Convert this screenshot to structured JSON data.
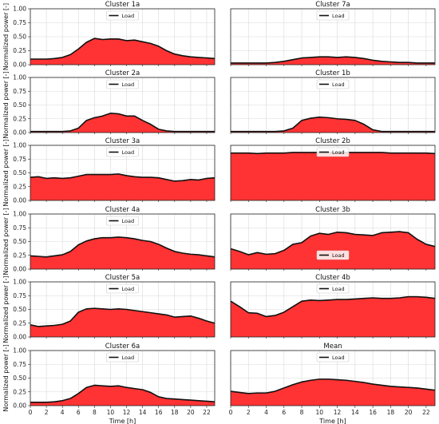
{
  "chart_data": [
    {
      "type": "area",
      "title": "Cluster 1a",
      "ylabel": "Normalized power [-]",
      "xlabel": "",
      "ylim": [
        0,
        1
      ],
      "xlim": [
        0,
        23
      ],
      "yticks": [
        "0.00",
        "0.25",
        "0.50",
        "0.75",
        "1.00"
      ],
      "xticks": [],
      "grid": true,
      "legend": "top-center",
      "series": [
        {
          "name": "Load",
          "x": [
            0,
            1,
            2,
            3,
            4,
            5,
            6,
            7,
            8,
            9,
            10,
            11,
            12,
            13,
            14,
            15,
            16,
            17,
            18,
            19,
            20,
            21,
            22,
            23
          ],
          "values": [
            0.1,
            0.1,
            0.1,
            0.11,
            0.13,
            0.18,
            0.28,
            0.4,
            0.47,
            0.45,
            0.46,
            0.46,
            0.43,
            0.44,
            0.41,
            0.38,
            0.33,
            0.25,
            0.19,
            0.16,
            0.14,
            0.13,
            0.12,
            0.11
          ]
        }
      ]
    },
    {
      "type": "area",
      "title": "Cluster 7a",
      "ylabel": "",
      "xlabel": "",
      "ylim": [
        0,
        1
      ],
      "xlim": [
        0,
        23
      ],
      "yticks": [],
      "xticks": [],
      "grid": true,
      "legend": "top-center",
      "series": [
        {
          "name": "Load",
          "x": [
            0,
            1,
            2,
            3,
            4,
            5,
            6,
            7,
            8,
            9,
            10,
            11,
            12,
            13,
            14,
            15,
            16,
            17,
            18,
            19,
            20,
            21,
            22,
            23
          ],
          "values": [
            0.03,
            0.03,
            0.03,
            0.03,
            0.03,
            0.04,
            0.06,
            0.09,
            0.12,
            0.13,
            0.14,
            0.14,
            0.13,
            0.14,
            0.13,
            0.11,
            0.08,
            0.06,
            0.05,
            0.04,
            0.04,
            0.03,
            0.03,
            0.03
          ]
        }
      ]
    },
    {
      "type": "area",
      "title": "Cluster 2a",
      "ylabel": "Normalized power [-]",
      "xlabel": "",
      "ylim": [
        0,
        1
      ],
      "xlim": [
        0,
        23
      ],
      "yticks": [
        "0.00",
        "0.25",
        "0.50",
        "0.75",
        "1.00"
      ],
      "xticks": [],
      "grid": true,
      "legend": "top-center",
      "series": [
        {
          "name": "Load",
          "x": [
            0,
            1,
            2,
            3,
            4,
            5,
            6,
            7,
            8,
            9,
            10,
            11,
            12,
            13,
            14,
            15,
            16,
            17,
            18,
            19,
            20,
            21,
            22,
            23
          ],
          "values": [
            0.02,
            0.02,
            0.02,
            0.02,
            0.02,
            0.03,
            0.08,
            0.22,
            0.27,
            0.3,
            0.35,
            0.34,
            0.3,
            0.3,
            0.22,
            0.15,
            0.06,
            0.03,
            0.02,
            0.02,
            0.02,
            0.02,
            0.02,
            0.02
          ]
        }
      ]
    },
    {
      "type": "area",
      "title": "Cluster 1b",
      "ylabel": "",
      "xlabel": "",
      "ylim": [
        0,
        1
      ],
      "xlim": [
        0,
        23
      ],
      "yticks": [],
      "xticks": [],
      "grid": true,
      "legend": "top-center",
      "series": [
        {
          "name": "Load",
          "x": [
            0,
            1,
            2,
            3,
            4,
            5,
            6,
            7,
            8,
            9,
            10,
            11,
            12,
            13,
            14,
            15,
            16,
            17,
            18,
            19,
            20,
            21,
            22,
            23
          ],
          "values": [
            0.02,
            0.02,
            0.02,
            0.02,
            0.02,
            0.02,
            0.03,
            0.08,
            0.22,
            0.26,
            0.28,
            0.27,
            0.25,
            0.24,
            0.22,
            0.15,
            0.05,
            0.02,
            0.02,
            0.02,
            0.02,
            0.02,
            0.02,
            0.02
          ]
        }
      ]
    },
    {
      "type": "area",
      "title": "Cluster 3a",
      "ylabel": "Normalized power [-]",
      "xlabel": "",
      "ylim": [
        0,
        1
      ],
      "xlim": [
        0,
        23
      ],
      "yticks": [
        "0.00",
        "0.25",
        "0.50",
        "0.75",
        "1.00"
      ],
      "xticks": [],
      "grid": true,
      "legend": "top-center",
      "series": [
        {
          "name": "Load",
          "x": [
            0,
            1,
            2,
            3,
            4,
            5,
            6,
            7,
            8,
            9,
            10,
            11,
            12,
            13,
            14,
            15,
            16,
            17,
            18,
            19,
            20,
            21,
            22,
            23
          ],
          "values": [
            0.42,
            0.43,
            0.4,
            0.41,
            0.4,
            0.41,
            0.44,
            0.47,
            0.47,
            0.47,
            0.47,
            0.48,
            0.45,
            0.43,
            0.42,
            0.42,
            0.41,
            0.38,
            0.35,
            0.36,
            0.38,
            0.37,
            0.4,
            0.41
          ]
        }
      ]
    },
    {
      "type": "area",
      "title": "Cluster 2b",
      "ylabel": "",
      "xlabel": "",
      "ylim": [
        0,
        1
      ],
      "xlim": [
        0,
        23
      ],
      "yticks": [],
      "xticks": [],
      "grid": true,
      "legend": "top-center",
      "series": [
        {
          "name": "Load",
          "x": [
            0,
            1,
            2,
            3,
            4,
            5,
            6,
            7,
            8,
            9,
            10,
            11,
            12,
            13,
            14,
            15,
            16,
            17,
            18,
            19,
            20,
            21,
            22,
            23
          ],
          "values": [
            0.86,
            0.86,
            0.86,
            0.85,
            0.86,
            0.86,
            0.86,
            0.87,
            0.87,
            0.87,
            0.87,
            0.87,
            0.87,
            0.87,
            0.87,
            0.87,
            0.87,
            0.87,
            0.86,
            0.86,
            0.86,
            0.86,
            0.86,
            0.85
          ]
        }
      ]
    },
    {
      "type": "area",
      "title": "Cluster 4a",
      "ylabel": "Normalized power [-]",
      "xlabel": "",
      "ylim": [
        0,
        1
      ],
      "xlim": [
        0,
        23
      ],
      "yticks": [
        "0.00",
        "0.25",
        "0.50",
        "0.75",
        "1.00"
      ],
      "xticks": [],
      "grid": true,
      "legend": "top-center",
      "series": [
        {
          "name": "Load",
          "x": [
            0,
            1,
            2,
            3,
            4,
            5,
            6,
            7,
            8,
            9,
            10,
            11,
            12,
            13,
            14,
            15,
            16,
            17,
            18,
            19,
            20,
            21,
            22,
            23
          ],
          "values": [
            0.24,
            0.23,
            0.22,
            0.24,
            0.26,
            0.32,
            0.44,
            0.51,
            0.55,
            0.57,
            0.57,
            0.58,
            0.57,
            0.55,
            0.52,
            0.5,
            0.45,
            0.38,
            0.32,
            0.29,
            0.27,
            0.26,
            0.24,
            0.22
          ]
        }
      ]
    },
    {
      "type": "area",
      "title": "Cluster 3b",
      "ylabel": "",
      "xlabel": "",
      "ylim": [
        0,
        1
      ],
      "xlim": [
        0,
        23
      ],
      "yticks": [],
      "xticks": [],
      "grid": true,
      "legend": "bottom-center",
      "series": [
        {
          "name": "Load",
          "x": [
            0,
            1,
            2,
            3,
            4,
            5,
            6,
            7,
            8,
            9,
            10,
            11,
            12,
            13,
            14,
            15,
            16,
            17,
            18,
            19,
            20,
            21,
            22,
            23
          ],
          "values": [
            0.37,
            0.32,
            0.26,
            0.3,
            0.27,
            0.28,
            0.34,
            0.45,
            0.48,
            0.6,
            0.65,
            0.63,
            0.67,
            0.66,
            0.63,
            0.62,
            0.61,
            0.66,
            0.67,
            0.68,
            0.66,
            0.54,
            0.45,
            0.41
          ]
        }
      ]
    },
    {
      "type": "area",
      "title": "Cluster 5a",
      "ylabel": "Normalized power [-]",
      "xlabel": "",
      "ylim": [
        0,
        1
      ],
      "xlim": [
        0,
        23
      ],
      "yticks": [
        "0.00",
        "0.25",
        "0.50",
        "0.75",
        "1.00"
      ],
      "xticks": [],
      "grid": true,
      "legend": "top-center",
      "series": [
        {
          "name": "Load",
          "x": [
            0,
            1,
            2,
            3,
            4,
            5,
            6,
            7,
            8,
            9,
            10,
            11,
            12,
            13,
            14,
            15,
            16,
            17,
            18,
            19,
            20,
            21,
            22,
            23
          ],
          "values": [
            0.22,
            0.19,
            0.2,
            0.21,
            0.23,
            0.29,
            0.45,
            0.51,
            0.52,
            0.51,
            0.5,
            0.51,
            0.5,
            0.48,
            0.46,
            0.44,
            0.42,
            0.4,
            0.36,
            0.37,
            0.38,
            0.34,
            0.29,
            0.25
          ]
        }
      ]
    },
    {
      "type": "area",
      "title": "Cluster 4b",
      "ylabel": "",
      "xlabel": "",
      "ylim": [
        0,
        1
      ],
      "xlim": [
        0,
        23
      ],
      "yticks": [],
      "xticks": [],
      "grid": true,
      "legend": "top-center",
      "series": [
        {
          "name": "Load",
          "x": [
            0,
            1,
            2,
            3,
            4,
            5,
            6,
            7,
            8,
            9,
            10,
            11,
            12,
            13,
            14,
            15,
            16,
            17,
            18,
            19,
            20,
            21,
            22,
            23
          ],
          "values": [
            0.65,
            0.55,
            0.44,
            0.43,
            0.37,
            0.39,
            0.45,
            0.55,
            0.65,
            0.67,
            0.66,
            0.67,
            0.68,
            0.68,
            0.69,
            0.7,
            0.71,
            0.7,
            0.7,
            0.71,
            0.73,
            0.73,
            0.72,
            0.7
          ]
        }
      ]
    },
    {
      "type": "area",
      "title": "Cluster 6a",
      "ylabel": "Normalized power [-]",
      "xlabel": "Time [h]",
      "ylim": [
        0,
        1
      ],
      "xlim": [
        0,
        23
      ],
      "yticks": [
        "0.00",
        "0.25",
        "0.50",
        "0.75",
        "1.00"
      ],
      "xticks": [
        "0",
        "2",
        "4",
        "6",
        "8",
        "10",
        "12",
        "14",
        "16",
        "18",
        "20",
        "22"
      ],
      "grid": true,
      "legend": "top-center",
      "series": [
        {
          "name": "Load",
          "x": [
            0,
            1,
            2,
            3,
            4,
            5,
            6,
            7,
            8,
            9,
            10,
            11,
            12,
            13,
            14,
            15,
            16,
            17,
            18,
            19,
            20,
            21,
            22,
            23
          ],
          "values": [
            0.06,
            0.06,
            0.06,
            0.07,
            0.09,
            0.13,
            0.22,
            0.33,
            0.37,
            0.36,
            0.35,
            0.36,
            0.33,
            0.31,
            0.29,
            0.24,
            0.16,
            0.13,
            0.12,
            0.11,
            0.1,
            0.09,
            0.08,
            0.07
          ]
        }
      ]
    },
    {
      "type": "area",
      "title": "Mean",
      "ylabel": "",
      "xlabel": "Time [h]",
      "ylim": [
        0,
        1
      ],
      "xlim": [
        0,
        23
      ],
      "yticks": [],
      "xticks": [
        "0",
        "2",
        "4",
        "6",
        "8",
        "10",
        "12",
        "14",
        "16",
        "18",
        "20",
        "22"
      ],
      "grid": true,
      "legend": "top-center",
      "series": [
        {
          "name": "Load",
          "x": [
            0,
            1,
            2,
            3,
            4,
            5,
            6,
            7,
            8,
            9,
            10,
            11,
            12,
            13,
            14,
            15,
            16,
            17,
            18,
            19,
            20,
            21,
            22,
            23
          ],
          "values": [
            0.26,
            0.24,
            0.22,
            0.23,
            0.23,
            0.26,
            0.32,
            0.38,
            0.43,
            0.46,
            0.48,
            0.48,
            0.47,
            0.46,
            0.44,
            0.42,
            0.39,
            0.37,
            0.35,
            0.34,
            0.33,
            0.32,
            0.3,
            0.28
          ]
        }
      ]
    }
  ],
  "colors": {
    "fill": "#ff3333",
    "line": "#111111",
    "grid": "#d9d9d9"
  }
}
